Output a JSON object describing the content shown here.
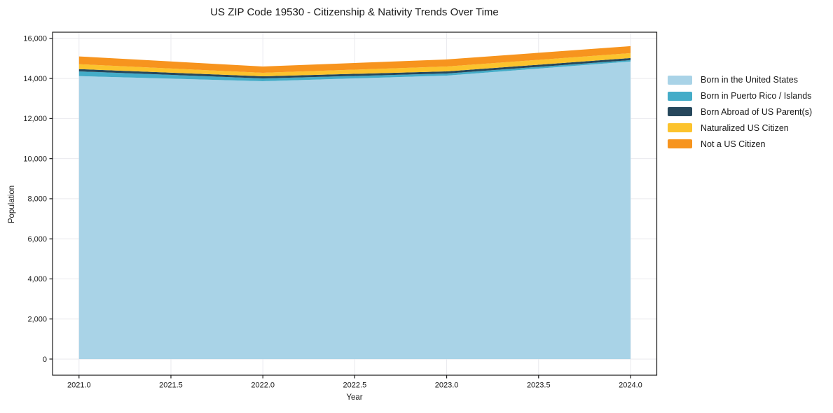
{
  "chart_data": {
    "type": "area",
    "stacked": true,
    "title": "US ZIP Code 19530 - Citizenship & Nativity Trends Over Time",
    "xlabel": "Year",
    "ylabel": "Population",
    "x": [
      2021,
      2022,
      2023,
      2024
    ],
    "series": [
      {
        "name": "Born in the United States",
        "color": "#a9d3e7",
        "values": [
          14120,
          13865,
          14145,
          14845
        ]
      },
      {
        "name": "Born in Puerto Rico / Islands",
        "color": "#44acc8",
        "values": [
          235,
          140,
          105,
          70
        ]
      },
      {
        "name": "Born Abroad of US Parent(s)",
        "color": "#26475c",
        "values": [
          115,
          105,
          105,
          105
        ]
      },
      {
        "name": "Naturalized US Citizen",
        "color": "#fcc32d",
        "values": [
          245,
          175,
          245,
          245
        ]
      },
      {
        "name": "Not a US Citizen",
        "color": "#f7941e",
        "values": [
          385,
          315,
          350,
          350
        ]
      }
    ],
    "stack_totals": [
      15100,
      14600,
      14950,
      15615
    ],
    "xticks": {
      "values": [
        2021,
        2021.5,
        2022,
        2022.5,
        2023,
        2023.5,
        2024
      ],
      "labels": [
        "2021.0",
        "2021.5",
        "2022.0",
        "2022.5",
        "2023.0",
        "2023.5",
        "2024.0"
      ]
    },
    "yticks": {
      "values": [
        0,
        2000,
        4000,
        6000,
        8000,
        10000,
        12000,
        14000,
        16000
      ],
      "labels": [
        "0",
        "2,000",
        "4,000",
        "6,000",
        "8,000",
        "10,000",
        "12,000",
        "14,000",
        "16,000"
      ]
    },
    "x_range": [
      2020.856,
      2024.143
    ],
    "y_range": [
      -805,
      16310
    ],
    "grid": true,
    "legend_position": "right-outside",
    "colors": {
      "axis": "#1a1a1a",
      "grid": "#e9e9ee",
      "background": "#ffffff"
    }
  }
}
